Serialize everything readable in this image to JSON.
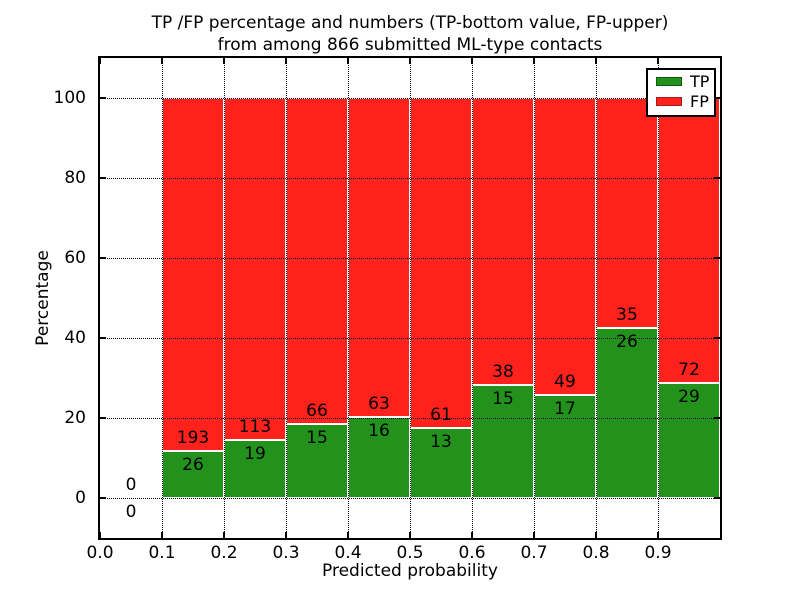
{
  "figure": {
    "title_line1": "TP /FP percentage and numbers (TP-bottom value, FP-upper)",
    "title_line2": "from among 866 submitted ML-type contacts",
    "xlabel": "Predicted probability",
    "ylabel": "Percentage"
  },
  "legend": {
    "items": [
      {
        "label": "TP",
        "color": "#22921d",
        "edge": "#0e5c10"
      },
      {
        "label": "FP",
        "color": "#ff221c",
        "edge": "#a51d15"
      }
    ]
  },
  "axes": {
    "xticks": [
      "0.0",
      "0.1",
      "0.2",
      "0.3",
      "0.4",
      "0.5",
      "0.6",
      "0.7",
      "0.8",
      "0.9"
    ],
    "yticks": [
      "0",
      "20",
      "40",
      "60",
      "80",
      "100"
    ],
    "xlim": [
      0.0,
      1.0
    ],
    "ylim": [
      -10,
      110
    ],
    "grid_style": "dotted"
  },
  "chart_data": {
    "type": "bar",
    "stacked": true,
    "units": "percent",
    "title": "TP /FP percentage and numbers (TP-bottom value, FP-upper) from among 866 submitted ML-type contacts",
    "xlabel": "Predicted probability",
    "ylabel": "Percentage",
    "total_contacts": 866,
    "bin_edges": [
      0.0,
      0.1,
      0.2,
      0.3,
      0.4,
      0.5,
      0.6,
      0.7,
      0.8,
      0.9,
      1.0
    ],
    "series": [
      {
        "name": "TP",
        "color": "#22921d",
        "counts": [
          0,
          26,
          19,
          15,
          16,
          13,
          15,
          17,
          26,
          29
        ],
        "percent": [
          0,
          11.87,
          14.39,
          18.52,
          20.25,
          17.57,
          28.3,
          25.76,
          42.62,
          28.71
        ]
      },
      {
        "name": "FP",
        "color": "#ff221c",
        "counts": [
          0,
          193,
          113,
          66,
          63,
          61,
          38,
          49,
          35,
          72
        ],
        "percent": [
          0,
          88.13,
          85.61,
          81.48,
          79.75,
          82.43,
          71.7,
          74.24,
          57.38,
          71.29
        ]
      }
    ],
    "annotation_note": "TP count shown below stack boundary, FP count shown above it",
    "legend_position": "upper right",
    "grid": true
  }
}
